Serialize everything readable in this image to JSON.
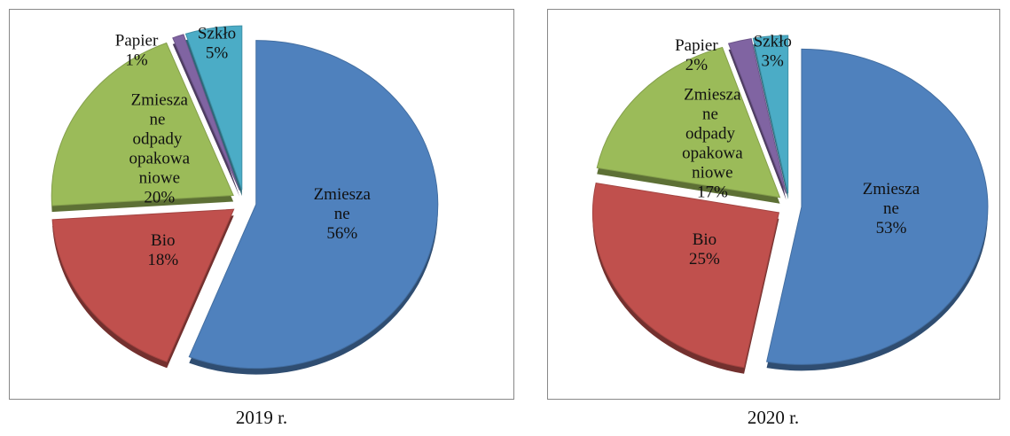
{
  "chart_data": [
    {
      "type": "pie",
      "title": "2019 r.",
      "categories": [
        "Zmieszane",
        "Bio",
        "Zmieszane odpady opakowaniowe",
        "Papier",
        "Szkło"
      ],
      "values": [
        56,
        18,
        20,
        1,
        5
      ],
      "value_labels": [
        "56%",
        "18%",
        "20%",
        "1%",
        "5%"
      ],
      "colors": [
        "#4f81bd",
        "#c0504d",
        "#9bbb59",
        "#8064a2",
        "#4bacc6"
      ]
    },
    {
      "type": "pie",
      "title": "2020 r.",
      "categories": [
        "Zmieszane",
        "Bio",
        "Zmieszane odpady opakowaniowe",
        "Papier",
        "Szkło"
      ],
      "values": [
        53,
        25,
        17,
        2,
        3
      ],
      "value_labels": [
        "53%",
        "25%",
        "17%",
        "2%",
        "3%"
      ],
      "colors": [
        "#4f81bd",
        "#c0504d",
        "#9bbb59",
        "#8064a2",
        "#4bacc6"
      ]
    }
  ]
}
